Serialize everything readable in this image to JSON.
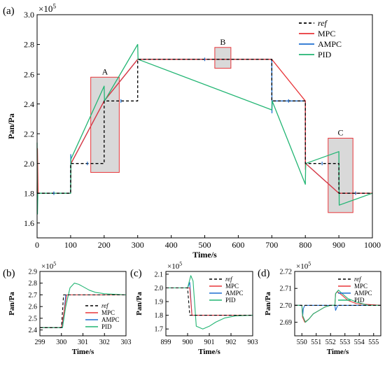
{
  "figure": {
    "main_panel_label": "(a)",
    "panel_labels": [
      "(b)",
      "(c)",
      "(d)"
    ]
  },
  "colors": {
    "ref": "#000000",
    "MPC": "#e8363a",
    "AMPC": "#1f6fd1",
    "PID": "#22b573",
    "region_fill": "#d9d9d9",
    "region_stroke": "#e8363a"
  },
  "chart_data": [
    {
      "type": "line",
      "panel": "(a)",
      "xlabel": "Time/s",
      "ylabel": "Pan/Pa",
      "y_multiplier": "×10^5",
      "xlim": [
        0,
        1000
      ],
      "ylim": [
        1.5,
        3.0
      ],
      "xticks": [
        0,
        100,
        200,
        300,
        400,
        500,
        600,
        700,
        800,
        900,
        1000
      ],
      "yticks": [
        1.6,
        1.8,
        2.0,
        2.2,
        2.4,
        2.6,
        2.8,
        3.0
      ],
      "ytick_labels": [
        "1.6",
        "1.8",
        "2.0",
        "2.2",
        "2.4",
        "2.6",
        "2.8",
        "3.0"
      ],
      "legend_position": "top-right",
      "series": [
        {
          "name": "ref",
          "style": "dashed",
          "x": [
            0,
            100,
            100,
            200,
            200,
            300,
            300,
            700,
            700,
            800,
            800,
            900,
            900,
            1000
          ],
          "y": [
            1.8,
            1.8,
            2.0,
            2.0,
            2.42,
            2.42,
            2.7,
            2.7,
            2.42,
            2.42,
            2.0,
            2.0,
            1.8,
            1.8
          ]
        },
        {
          "name": "MPC",
          "x": [
            0,
            1,
            3,
            100,
            101,
            200,
            300,
            700,
            800,
            800.3,
            801,
            900,
            1000
          ],
          "y": [
            1.8,
            2.1,
            1.8,
            1.8,
            2.0,
            2.42,
            2.7,
            2.7,
            2.42,
            1.96,
            2.0,
            1.8,
            1.8
          ]
        },
        {
          "name": "AMPC",
          "x": [
            0,
            100,
            100.5,
            101,
            200,
            300,
            400,
            500,
            600,
            700,
            700.5,
            701,
            800,
            800.5,
            801,
            900,
            1000
          ],
          "y": [
            1.8,
            1.8,
            2.06,
            2.0,
            2.42,
            2.7,
            2.7,
            2.7,
            2.7,
            2.7,
            2.34,
            2.42,
            2.42,
            1.99,
            2.0,
            1.8,
            1.8
          ]
        },
        {
          "name": "PID",
          "x": [
            0,
            1,
            2,
            5,
            100,
            101,
            200,
            201,
            300,
            301,
            700,
            701,
            800,
            801,
            900,
            901,
            1000
          ],
          "y": [
            2.14,
            1.66,
            1.8,
            1.8,
            1.8,
            2.03,
            2.52,
            2.42,
            2.8,
            2.7,
            2.36,
            2.42,
            1.86,
            2.0,
            2.08,
            1.72,
            1.8
          ]
        }
      ],
      "regions": [
        {
          "label": "A",
          "x": [
            160,
            245
          ],
          "y": [
            1.94,
            2.58
          ]
        },
        {
          "label": "B",
          "x": [
            530,
            578
          ],
          "y": [
            2.64,
            2.78
          ]
        },
        {
          "label": "C",
          "x": [
            868,
            942
          ],
          "y": [
            1.67,
            2.17
          ]
        }
      ]
    },
    {
      "type": "line",
      "panel": "(b)",
      "xlabel": "Time/s",
      "ylabel": "Pan/Pa",
      "y_multiplier": "×10^5",
      "xlim": [
        299,
        303
      ],
      "ylim": [
        2.35,
        2.9
      ],
      "xticks": [
        299,
        300,
        301,
        302,
        303
      ],
      "yticks": [
        2.4,
        2.5,
        2.6,
        2.7,
        2.8,
        2.9
      ],
      "ytick_labels": [
        "2.4",
        "2.5",
        "2.6",
        "2.7",
        "2.8",
        "2.9"
      ],
      "legend_position": "bottom-right",
      "series": [
        {
          "name": "ref",
          "style": "dashed",
          "x": [
            299,
            300,
            300.1,
            303
          ],
          "y": [
            2.42,
            2.42,
            2.7,
            2.7
          ]
        },
        {
          "name": "MPC",
          "x": [
            299,
            300,
            300.25,
            303
          ],
          "y": [
            2.42,
            2.42,
            2.7,
            2.7
          ]
        },
        {
          "name": "AMPC",
          "x": [
            299,
            300.05,
            300.2,
            303
          ],
          "y": [
            2.42,
            2.42,
            2.7,
            2.7
          ]
        },
        {
          "name": "PID",
          "x": [
            299,
            300.05,
            300.2,
            300.4,
            300.6,
            300.8,
            301.0,
            301.3,
            301.6,
            302.0,
            303
          ],
          "y": [
            2.42,
            2.42,
            2.6,
            2.76,
            2.8,
            2.79,
            2.77,
            2.74,
            2.72,
            2.71,
            2.7
          ]
        }
      ]
    },
    {
      "type": "line",
      "panel": "(c)",
      "xlabel": "Time/s",
      "ylabel": "Pan/Pa",
      "y_multiplier": "×10^5",
      "xlim": [
        899,
        903
      ],
      "ylim": [
        1.65,
        2.12
      ],
      "xticks": [
        899,
        900,
        901,
        902,
        903
      ],
      "yticks": [
        1.7,
        1.8,
        1.9,
        2.0,
        2.1
      ],
      "ytick_labels": [
        "1.7",
        "1.8",
        "1.9",
        "2.0",
        "2.1"
      ],
      "legend_position": "top-right",
      "series": [
        {
          "name": "ref",
          "style": "dashed",
          "x": [
            899,
            900,
            900.1,
            903
          ],
          "y": [
            2.0,
            2.0,
            1.8,
            1.8
          ]
        },
        {
          "name": "MPC",
          "x": [
            899,
            900.1,
            900.2,
            900.3,
            903
          ],
          "y": [
            2.0,
            2.0,
            1.8,
            1.8,
            1.8
          ]
        },
        {
          "name": "AMPC",
          "x": [
            899,
            900.0,
            900.1,
            900.2,
            903
          ],
          "y": [
            2.0,
            2.0,
            2.04,
            1.8,
            1.8
          ]
        },
        {
          "name": "PID",
          "x": [
            899,
            900.0,
            900.15,
            900.25,
            900.4,
            900.7,
            901.0,
            901.3,
            901.7,
            902.2,
            903
          ],
          "y": [
            2.0,
            2.0,
            2.09,
            2.05,
            1.72,
            1.7,
            1.72,
            1.75,
            1.78,
            1.795,
            1.8
          ]
        }
      ]
    },
    {
      "type": "line",
      "panel": "(d)",
      "xlabel": "Time/s",
      "ylabel": "Pan/Pa",
      "y_multiplier": "×10^5",
      "xlim": [
        549.5,
        555.5
      ],
      "ylim": [
        2.682,
        2.72
      ],
      "xticks": [
        550,
        551,
        552,
        553,
        554,
        555
      ],
      "yticks": [
        2.69,
        2.7,
        2.71,
        2.72
      ],
      "ytick_labels": [
        "2.69",
        "2.70",
        "2.71",
        "2.72"
      ],
      "legend_position": "top-right",
      "series": [
        {
          "name": "ref",
          "style": "dashed",
          "x": [
            549.5,
            555.5
          ],
          "y": [
            2.7,
            2.7
          ]
        },
        {
          "name": "MPC",
          "x": [
            549.5,
            550.0,
            550.05,
            550.2,
            550.5,
            550.8,
            551.2,
            551.6,
            552.0,
            552.3,
            552.35,
            552.5,
            552.8,
            553.2,
            553.8,
            555.5
          ],
          "y": [
            2.7,
            2.7,
            2.693,
            2.69,
            2.692,
            2.695,
            2.697,
            2.699,
            2.7,
            2.7,
            2.707,
            2.708,
            2.706,
            2.703,
            2.701,
            2.7
          ]
        },
        {
          "name": "AMPC",
          "x": [
            549.5,
            550.0,
            550.05,
            550.1,
            550.2,
            552.3,
            552.35,
            552.4,
            552.5,
            555.5
          ],
          "y": [
            2.7,
            2.7,
            2.693,
            2.698,
            2.7,
            2.7,
            2.697,
            2.698,
            2.7,
            2.7
          ]
        },
        {
          "name": "PID",
          "x": [
            549.5,
            550.0,
            550.05,
            550.25,
            550.5,
            550.8,
            551.2,
            551.6,
            552.0,
            552.3,
            552.35,
            552.55,
            552.8,
            553.2,
            553.8,
            554.6,
            555.5
          ],
          "y": [
            2.7,
            2.7,
            2.694,
            2.69,
            2.692,
            2.695,
            2.697,
            2.699,
            2.7,
            2.7,
            2.707,
            2.709,
            2.707,
            2.704,
            2.702,
            2.7,
            2.7
          ]
        }
      ]
    }
  ]
}
